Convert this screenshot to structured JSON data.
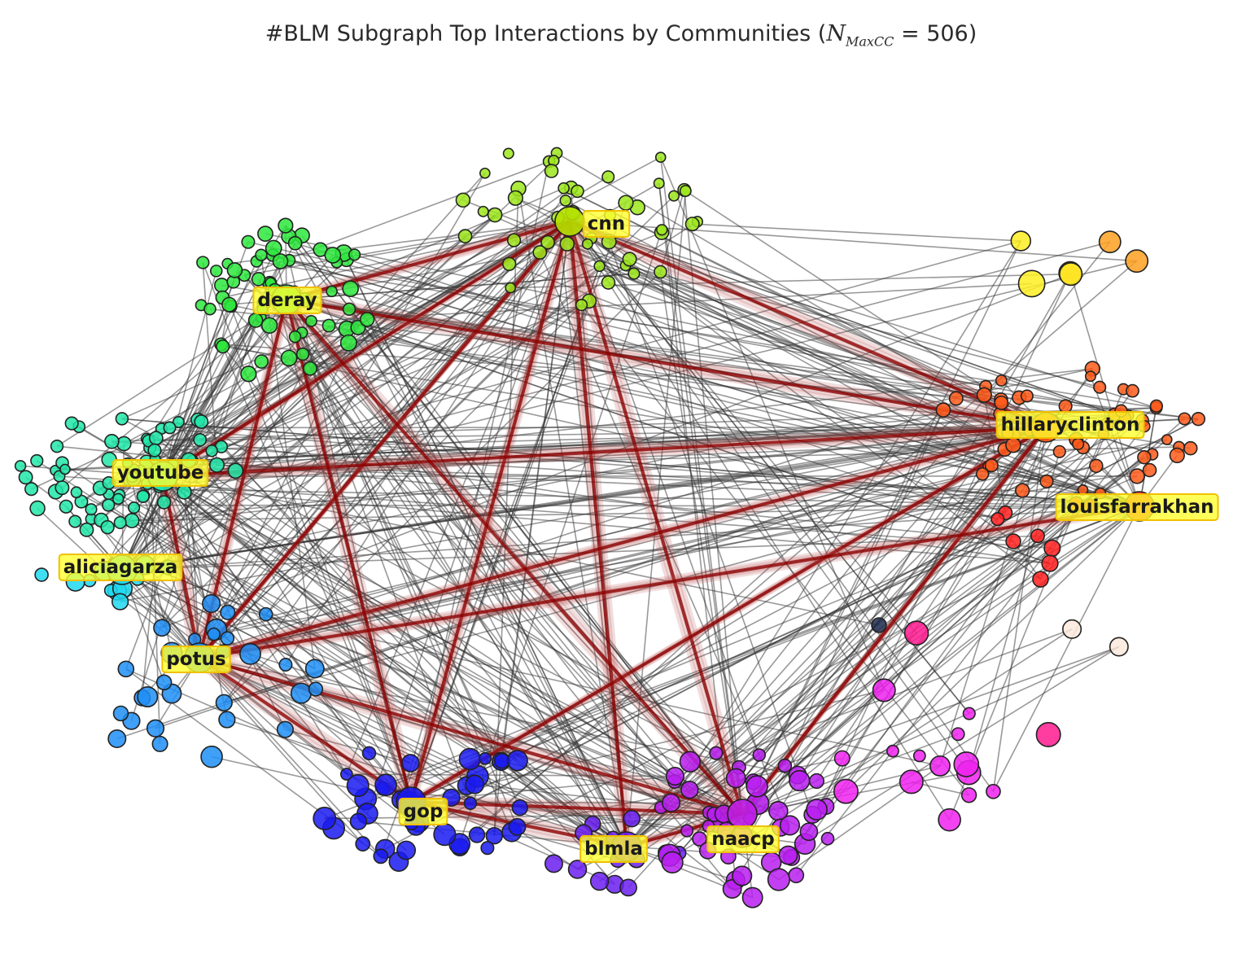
{
  "title": {
    "prefix": "#BLM Subgraph Top Interactions by Communities (",
    "n_symbol": "N",
    "n_subscript": "MaxCC",
    "equals": " = ",
    "n_value": "506",
    "suffix": ")"
  },
  "hubs": [
    {
      "id": "cnn",
      "label": "cnn",
      "color": "#b6e000"
    },
    {
      "id": "deray",
      "label": "deray",
      "color": "#2ee84a"
    },
    {
      "id": "youtube",
      "label": "youtube",
      "color": "#22e6b0"
    },
    {
      "id": "aliciagarza",
      "label": "aliciagarza",
      "color": "#21d6ee"
    },
    {
      "id": "potus",
      "label": "potus",
      "color": "#1a8ef5"
    },
    {
      "id": "gop",
      "label": "gop",
      "color": "#1a1aee"
    },
    {
      "id": "blmla",
      "label": "blmla",
      "color": "#6a1ef0"
    },
    {
      "id": "naacp",
      "label": "naacp",
      "color": "#c01ee8"
    },
    {
      "id": "hillaryclinton",
      "label": "hillaryclinton",
      "color": "#ff5a14"
    },
    {
      "id": "louisfarrakhan",
      "label": "louisfarrakhan",
      "color": "#ff1f1f"
    }
  ],
  "communities": [
    {
      "id": "cnn",
      "color": "#9ee81c",
      "count": 48
    },
    {
      "id": "deray",
      "color": "#2de83c",
      "count": 60
    },
    {
      "id": "youtube",
      "color": "#21e8a8",
      "count": 70
    },
    {
      "id": "aliciagarza",
      "color": "#1ed8f0",
      "count": 12
    },
    {
      "id": "potus",
      "color": "#1e8ef5",
      "count": 30
    },
    {
      "id": "gop",
      "color": "#1a1af0",
      "count": 40
    },
    {
      "id": "blmla",
      "color": "#6a1ef0",
      "count": 14
    },
    {
      "id": "naacp",
      "color": "#b81ef0",
      "count": 50
    },
    {
      "id": "magenta",
      "color": "#ee22ee",
      "count": 14
    },
    {
      "id": "hillaryclinton",
      "color": "#ff5a1a",
      "count": 60
    },
    {
      "id": "louisfarrakhan",
      "color": "#ff2020",
      "count": 9
    },
    {
      "id": "orange",
      "color": "#ffa020",
      "count": 3
    },
    {
      "id": "yellow",
      "color": "#ffee22",
      "count": 3
    },
    {
      "id": "pink",
      "color": "#ff1a8e",
      "count": 2
    },
    {
      "id": "cream",
      "color": "#fde9dc",
      "count": 2
    },
    {
      "id": "dark",
      "color": "#1c2a4a",
      "count": 1
    }
  ],
  "strong_edges": [
    [
      "cnn",
      "hillaryclinton"
    ],
    [
      "cnn",
      "gop"
    ],
    [
      "cnn",
      "naacp"
    ],
    [
      "cnn",
      "potus"
    ],
    [
      "cnn",
      "deray"
    ],
    [
      "cnn",
      "youtube"
    ],
    [
      "cnn",
      "blmla"
    ],
    [
      "hillaryclinton",
      "gop"
    ],
    [
      "hillaryclinton",
      "potus"
    ],
    [
      "hillaryclinton",
      "deray"
    ],
    [
      "hillaryclinton",
      "naacp"
    ],
    [
      "hillaryclinton",
      "youtube"
    ],
    [
      "deray",
      "gop"
    ],
    [
      "deray",
      "potus"
    ],
    [
      "deray",
      "naacp"
    ],
    [
      "potus",
      "gop"
    ],
    [
      "potus",
      "naacp"
    ],
    [
      "gop",
      "naacp"
    ],
    [
      "gop",
      "blmla"
    ],
    [
      "youtube",
      "potus"
    ],
    [
      "louisfarrakhan",
      "potus"
    ],
    [
      "naacp",
      "blmla"
    ]
  ],
  "colors": {
    "strong_edge": "#8b0000",
    "strong_edge_halo": "#b04040",
    "weak_edge": "#333333",
    "label_box": "#ffff30",
    "label_border": "#f0c000",
    "node_stroke": "#222222"
  }
}
